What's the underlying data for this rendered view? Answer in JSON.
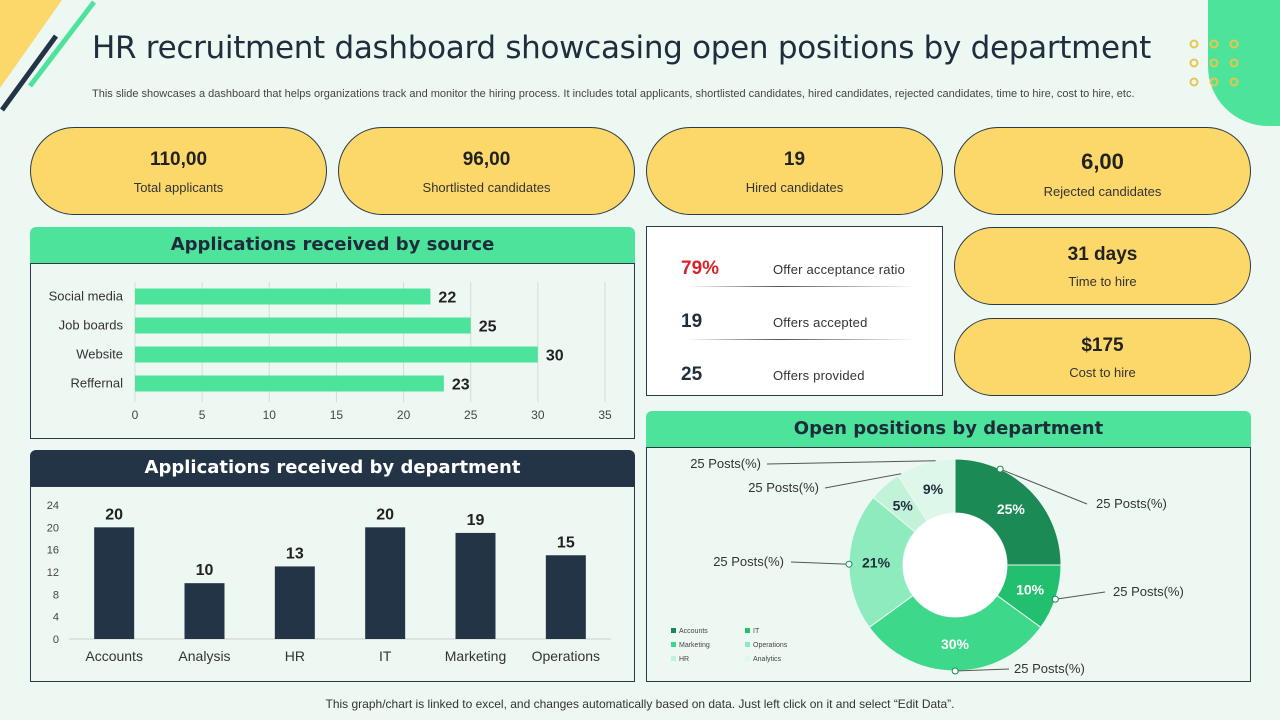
{
  "title": "HR recruitment dashboard showcasing open positions by department",
  "subtitle": "This slide showcases a dashboard that helps organizations track and monitor the hiring process. It includes total applicants, shortlisted candidates, hired candidates, rejected candidates, time to hire, cost to hire, etc.",
  "kpis": [
    {
      "value": "110,00",
      "label": "Total applicants"
    },
    {
      "value": "96,00",
      "label": "Shortlisted candidates"
    },
    {
      "value": "19",
      "label": "Hired candidates"
    },
    {
      "value": "6,00",
      "label": "Rejected candidates"
    }
  ],
  "side_kpis": [
    {
      "value": "31 days",
      "label": "Time to hire"
    },
    {
      "value": "$175",
      "label": "Cost to hire"
    }
  ],
  "offers": [
    {
      "value": "79%",
      "label": "Offer acceptance ratio",
      "color": "#d9232a"
    },
    {
      "value": "19",
      "label": "Offers accepted",
      "color": "#1f2d3d"
    },
    {
      "value": "25",
      "label": "Offers provided",
      "color": "#1f2d3d"
    }
  ],
  "panels": {
    "source_title": "Applications received by source",
    "dept_title": "Applications received by department",
    "open_title": "Open positions by department"
  },
  "footer": "This graph/chart is linked to excel,  and changes automatically based on data. Just left click on it and select “Edit Data”.",
  "colors": {
    "accent_green": "#4de39a",
    "navy": "#243447",
    "yellow": "#fcd86b"
  },
  "chart_data": [
    {
      "type": "bar",
      "orientation": "horizontal",
      "title": "Applications received by source",
      "categories": [
        "Social media",
        "Job boards",
        "Website",
        "Reffernal"
      ],
      "values": [
        22,
        25,
        30,
        23
      ],
      "xlim": [
        0,
        35
      ],
      "xticks": [
        0,
        5,
        10,
        15,
        20,
        25,
        30,
        35
      ],
      "color": "#4de39a",
      "grid": true
    },
    {
      "type": "bar",
      "title": "Applications received by department",
      "categories": [
        "Accounts",
        "Analysis",
        "HR",
        "IT",
        "Marketing",
        "Operations"
      ],
      "values": [
        20,
        10,
        13,
        20,
        19,
        15
      ],
      "ylim": [
        0,
        24
      ],
      "yticks": [
        0,
        4,
        8,
        12,
        16,
        20,
        24
      ],
      "color": "#243447"
    },
    {
      "type": "pie",
      "donut": true,
      "title": "Open positions by department",
      "labels": [
        "Accounts",
        "IT",
        "Marketing",
        "Operations",
        "HR",
        "Analytics"
      ],
      "values": [
        25,
        10,
        30,
        21,
        5,
        9
      ],
      "value_labels": [
        "25%",
        "10%",
        "30%",
        "21%",
        "5%",
        "9%"
      ],
      "colors": [
        "#1b8a54",
        "#22c06e",
        "#3dd88a",
        "#8eebbd",
        "#c2f3d9",
        "#ddf8ea"
      ],
      "callout": "25 Posts(%)",
      "legend": "bottom-left"
    }
  ]
}
